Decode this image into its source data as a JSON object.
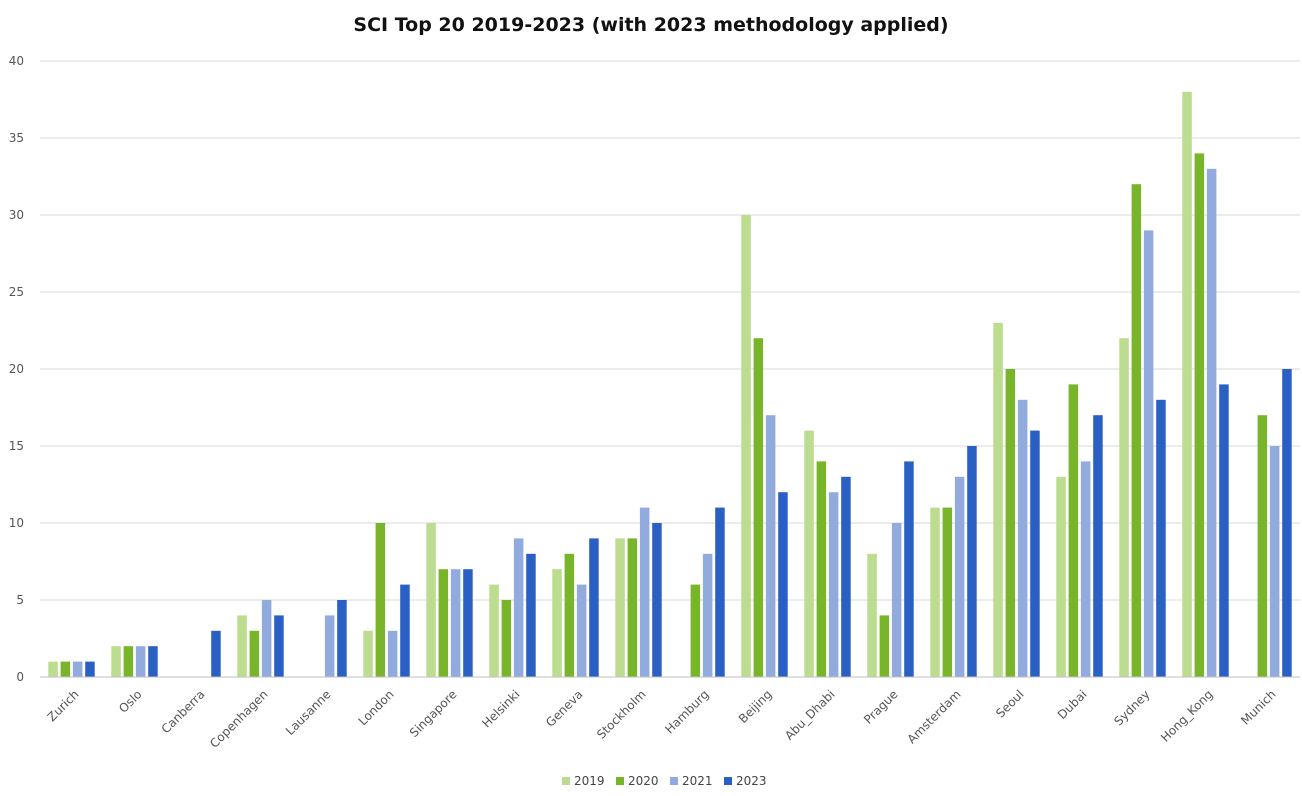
{
  "chart_data": {
    "type": "bar",
    "title": "SCI Top 20 2019-2023 (with 2023 methodology applied)",
    "xlabel": "",
    "ylabel": "",
    "ylim": [
      0,
      40
    ],
    "yticks": [
      0,
      5,
      10,
      15,
      20,
      25,
      30,
      35,
      40
    ],
    "grid": true,
    "legend_position": "bottom-center",
    "categories": [
      "Zurich",
      "Oslo",
      "Canberra",
      "Copenhagen",
      "Lausanne",
      "London",
      "Singapore",
      "Helsinki",
      "Geneva",
      "Stockholm",
      "Hamburg",
      "Beijing",
      "Abu_Dhabi",
      "Prague",
      "Amsterdam",
      "Seoul",
      "Dubai",
      "Sydney",
      "Hong_Kong",
      "Munich"
    ],
    "series": [
      {
        "name": "2019",
        "color": "#bcdc8f",
        "values": [
          1,
          2,
          null,
          4,
          null,
          3,
          10,
          6,
          7,
          9,
          null,
          30,
          16,
          8,
          11,
          23,
          13,
          22,
          38,
          null
        ]
      },
      {
        "name": "2020",
        "color": "#78b52a",
        "values": [
          1,
          2,
          null,
          3,
          null,
          10,
          7,
          5,
          8,
          9,
          6,
          22,
          14,
          4,
          11,
          20,
          19,
          32,
          34,
          17
        ]
      },
      {
        "name": "2021",
        "color": "#92abdf",
        "values": [
          1,
          2,
          null,
          5,
          4,
          3,
          7,
          9,
          6,
          11,
          8,
          17,
          12,
          10,
          13,
          18,
          14,
          29,
          33,
          15
        ]
      },
      {
        "name": "2023",
        "color": "#2a5fc4",
        "values": [
          1,
          2,
          3,
          4,
          5,
          6,
          7,
          8,
          9,
          10,
          11,
          12,
          13,
          14,
          15,
          16,
          17,
          18,
          19,
          20
        ]
      }
    ]
  }
}
